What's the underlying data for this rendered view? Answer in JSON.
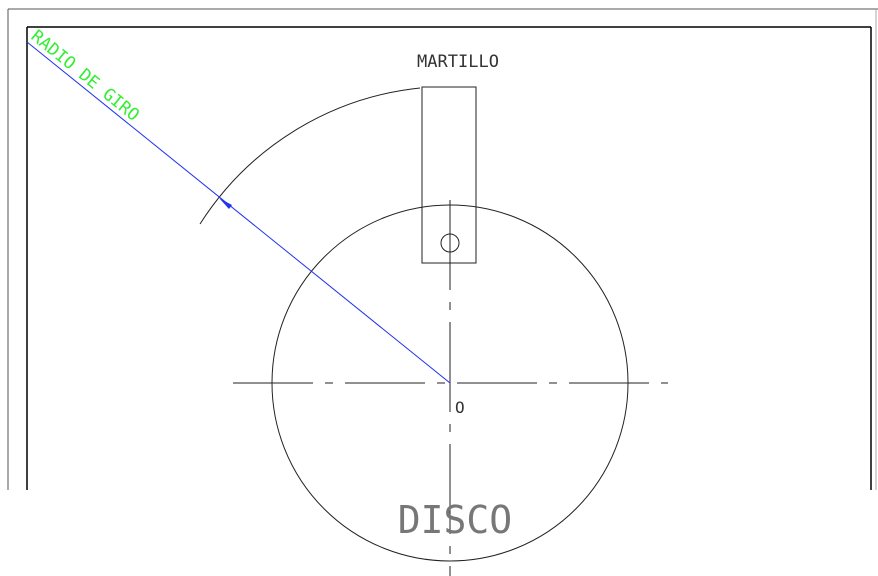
{
  "labels": {
    "hammer": "MARTILLO",
    "radius": "RADIO DE GIRO",
    "center": "O",
    "disc": "DISCO"
  }
}
